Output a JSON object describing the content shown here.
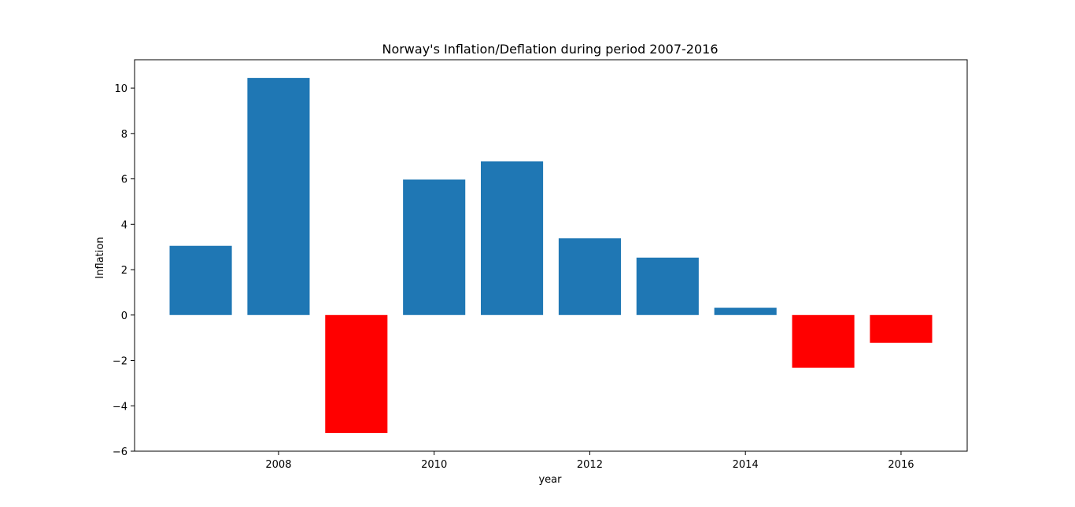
{
  "chart_data": {
    "type": "bar",
    "title": "Norway's Inflation/Deflation during period 2007-2016",
    "xlabel": "year",
    "ylabel": "Inflation",
    "x": [
      2007,
      2008,
      2009,
      2010,
      2011,
      2012,
      2013,
      2014,
      2015,
      2016
    ],
    "values": [
      3.05,
      10.45,
      -5.2,
      5.97,
      6.77,
      3.38,
      2.53,
      0.32,
      -2.32,
      -1.22
    ],
    "xlim": [
      2006.15,
      2016.85
    ],
    "ylim": [
      -6,
      11.25
    ],
    "xticks": [
      2008,
      2010,
      2012,
      2014,
      2016
    ],
    "xtick_labels": [
      "2008",
      "2010",
      "2012",
      "2014",
      "2016"
    ],
    "yticks": [
      -6,
      -4,
      -2,
      0,
      2,
      4,
      6,
      8,
      10
    ],
    "ytick_labels": [
      "−6",
      "−4",
      "−2",
      "0",
      "2",
      "4",
      "6",
      "8",
      "10"
    ],
    "bar_width_years": 0.8,
    "grid": false,
    "colors": {
      "positive": "#1f77b4",
      "negative": "#ff0000"
    }
  }
}
